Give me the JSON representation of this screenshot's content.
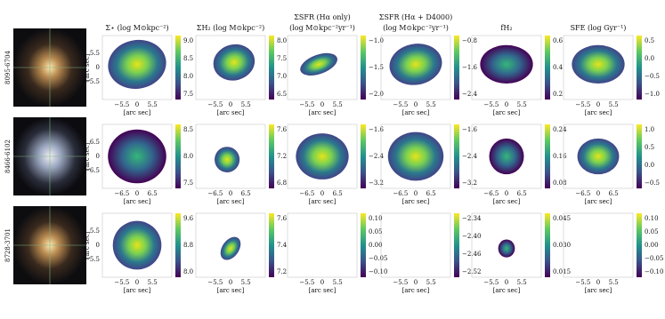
{
  "columns": [
    [
      "Σ⋆ (log M⊙kpc⁻²)"
    ],
    [
      "ΣH₂ (log M⊙kpc⁻²)"
    ],
    [
      "ΣSFR (Hα only)",
      "(log M⊙kpc⁻²yr⁻¹)"
    ],
    [
      "ΣSFR (Hα + D4000)",
      "(log M⊙kpc⁻²yr⁻¹)"
    ],
    [
      "fH₂"
    ],
    [
      "SFE (log Gyr⁻¹)"
    ]
  ],
  "axis_label": "[arc sec]",
  "rows": [
    {
      "id": "8095-6704",
      "xticks": [
        "−5.5",
        "0",
        "5.5"
      ],
      "yticks": [
        "5.5",
        "0",
        "−5.5"
      ],
      "colorbars": [
        [
          "9.0",
          "8.5",
          "8.0",
          "7.5"
        ],
        [
          "8.0",
          "7.5",
          "7.0",
          "6.5"
        ],
        [
          "−1.0",
          "−1.5",
          "−2.0"
        ],
        [
          "−0.8",
          "−1.6",
          "−2.4"
        ],
        [
          "0.6",
          "0.4",
          "0.2"
        ],
        [
          "0.5",
          "0.0",
          "−0.5",
          "−1.0"
        ]
      ]
    },
    {
      "id": "8466-6102",
      "xticks": [
        "−6.5",
        "0",
        "6.5"
      ],
      "yticks": [
        "6.5",
        "0",
        "−6.5"
      ],
      "colorbars": [
        [
          "8.5",
          "8.0",
          "7.5"
        ],
        [
          "7.6",
          "7.2",
          "6.8"
        ],
        [
          "−1.6",
          "−2.4",
          "−3.2"
        ],
        [
          "−1.6",
          "−2.4",
          "−3.2"
        ],
        [
          "0.24",
          "0.16",
          "0.08"
        ],
        [
          "1.0",
          "0.5",
          "0.0",
          "−0.5"
        ]
      ]
    },
    {
      "id": "8728-3701",
      "xticks": [
        "−5.5",
        "0",
        "5.5"
      ],
      "yticks": [
        "5.5",
        "0",
        "−5.5"
      ],
      "colorbars": [
        [
          "9.6",
          "8.8",
          "8.0"
        ],
        [
          "7.6",
          "7.4",
          "7.2"
        ],
        [
          "0.10",
          "0.05",
          "0.00",
          "−0.05",
          "−0.10"
        ],
        [
          "−2.34",
          "−2.40",
          "−2.46",
          "−2.52"
        ],
        [
          "0.045",
          "0.030",
          "0.015"
        ],
        [
          "0.10",
          "0.05",
          "0.00",
          "−0.05",
          "−0.10"
        ]
      ]
    }
  ]
}
